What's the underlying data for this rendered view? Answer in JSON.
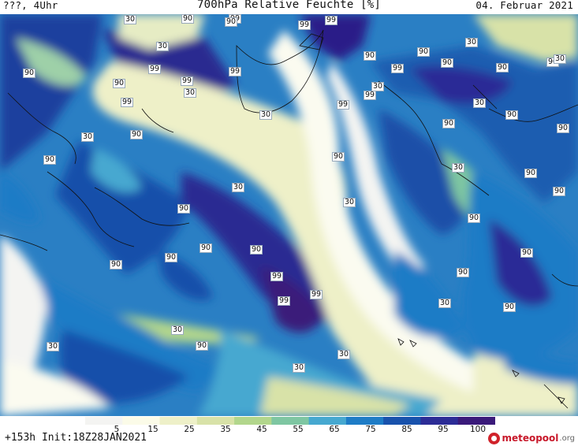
{
  "header": {
    "left": "???, 4Uhr",
    "title": "700hPa Relative Feuchte [%]",
    "date": "04. Februar 2021"
  },
  "footer": {
    "forecast": "+153h  Init:18Z28JAN2021",
    "brand_name": "meteopool",
    "brand_suffix": ".org"
  },
  "colorbar": {
    "unit": "%",
    "ticks": [
      "5",
      "15",
      "25",
      "35",
      "45",
      "55",
      "65",
      "75",
      "85",
      "95",
      "100"
    ],
    "colors": [
      "#f4f4f2",
      "#fbfbe8",
      "#eef0c8",
      "#d8e2a8",
      "#b2d68c",
      "#7ec6a2",
      "#46a8d0",
      "#1e7cc6",
      "#1852ac",
      "#2c2c96",
      "#3a1a7a"
    ]
  },
  "map_labels": {
    "values": [
      "99",
      "99",
      "99",
      "99",
      "99",
      "99",
      "99",
      "99",
      "99",
      "99",
      "99",
      "99",
      "99",
      "90",
      "90",
      "90",
      "90",
      "90",
      "90",
      "90",
      "90",
      "90",
      "90",
      "90",
      "90",
      "90",
      "90",
      "90",
      "90",
      "90",
      "90",
      "90",
      "90",
      "90",
      "90",
      "90",
      "90",
      "90",
      "90",
      "90",
      "30",
      "30",
      "30",
      "30",
      "30",
      "30",
      "30",
      "30",
      "30",
      "30",
      "30",
      "30",
      "30",
      "30",
      "30",
      "30",
      "30"
    ]
  },
  "icons": {
    "brand_logo": "meteopool-logo-icon"
  }
}
